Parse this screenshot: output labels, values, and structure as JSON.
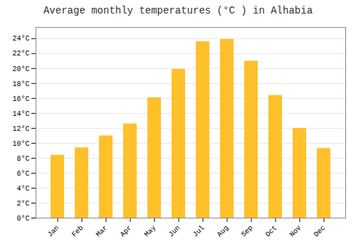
{
  "chart_data": {
    "type": "bar",
    "title": "Average monthly temperatures (°C ) in Alhabia",
    "categories": [
      "Jan",
      "Feb",
      "Mar",
      "Apr",
      "May",
      "Jun",
      "Jul",
      "Aug",
      "Sep",
      "Oct",
      "Nov",
      "Dec"
    ],
    "values": [
      8.4,
      9.4,
      11.0,
      12.6,
      16.1,
      19.9,
      23.6,
      23.9,
      21.0,
      16.4,
      12.0,
      9.3
    ],
    "color": "#FFC02A",
    "ylim": [
      0,
      25.5
    ],
    "yticks": [
      {
        "value": 0,
        "label": "0°C"
      },
      {
        "value": 2,
        "label": "2°C"
      },
      {
        "value": 4,
        "label": "4°C"
      },
      {
        "value": 6,
        "label": "6°C"
      },
      {
        "value": 8,
        "label": "8°C"
      },
      {
        "value": 10,
        "label": "10°C"
      },
      {
        "value": 12,
        "label": "12°C"
      },
      {
        "value": 14,
        "label": "14°C"
      },
      {
        "value": 16,
        "label": "16°C"
      },
      {
        "value": 18,
        "label": "18°C"
      },
      {
        "value": 20,
        "label": "20°C"
      },
      {
        "value": 22,
        "label": "22°C"
      },
      {
        "value": 24,
        "label": "24°C"
      }
    ],
    "grid": true
  }
}
